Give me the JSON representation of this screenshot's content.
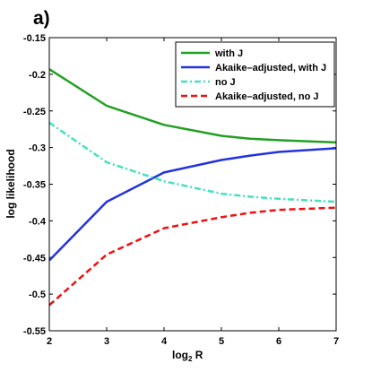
{
  "chart_data": {
    "type": "line",
    "panel_label": "a)",
    "title": "",
    "xlabel": "log",
    "xlabel_subscript": "2",
    "xlabel_suffix": " R",
    "ylabel": "log likelihood",
    "xlim": [
      2,
      7
    ],
    "ylim": [
      -0.55,
      -0.15
    ],
    "xticks": [
      2,
      3,
      4,
      5,
      6,
      7
    ],
    "xtick_labels": [
      "2",
      "3",
      "4",
      "5",
      "6",
      "7"
    ],
    "yticks": [
      -0.55,
      -0.5,
      -0.45,
      -0.4,
      -0.35,
      -0.3,
      -0.25,
      -0.2,
      -0.15
    ],
    "ytick_labels": [
      "-0.55",
      "-0.5",
      "-0.45",
      "-0.4",
      "-0.35",
      "-0.3",
      "-0.25",
      "-0.2",
      "-0.15"
    ],
    "grid": false,
    "legend_position": "top-right",
    "x": [
      2,
      3,
      4,
      5,
      5.5,
      6,
      7
    ],
    "series": [
      {
        "name": "with J",
        "color": "#22a022",
        "dash": "solid",
        "values": [
          -0.193,
          -0.243,
          -0.269,
          -0.284,
          -0.288,
          -0.29,
          -0.293
        ]
      },
      {
        "name": "Akaike–adjusted, with J",
        "color": "#2233dd",
        "dash": "solid",
        "values": [
          -0.454,
          -0.374,
          -0.334,
          -0.317,
          -0.311,
          -0.306,
          -0.301
        ]
      },
      {
        "name": "no J",
        "color": "#44e0c0",
        "dash": "dashdot",
        "values": [
          -0.266,
          -0.32,
          -0.346,
          -0.363,
          -0.367,
          -0.37,
          -0.374
        ]
      },
      {
        "name": "Akaike–adjusted, no J",
        "color": "#ee1111",
        "dash": "dashed",
        "values": [
          -0.515,
          -0.446,
          -0.41,
          -0.395,
          -0.389,
          -0.385,
          -0.382
        ]
      }
    ]
  }
}
